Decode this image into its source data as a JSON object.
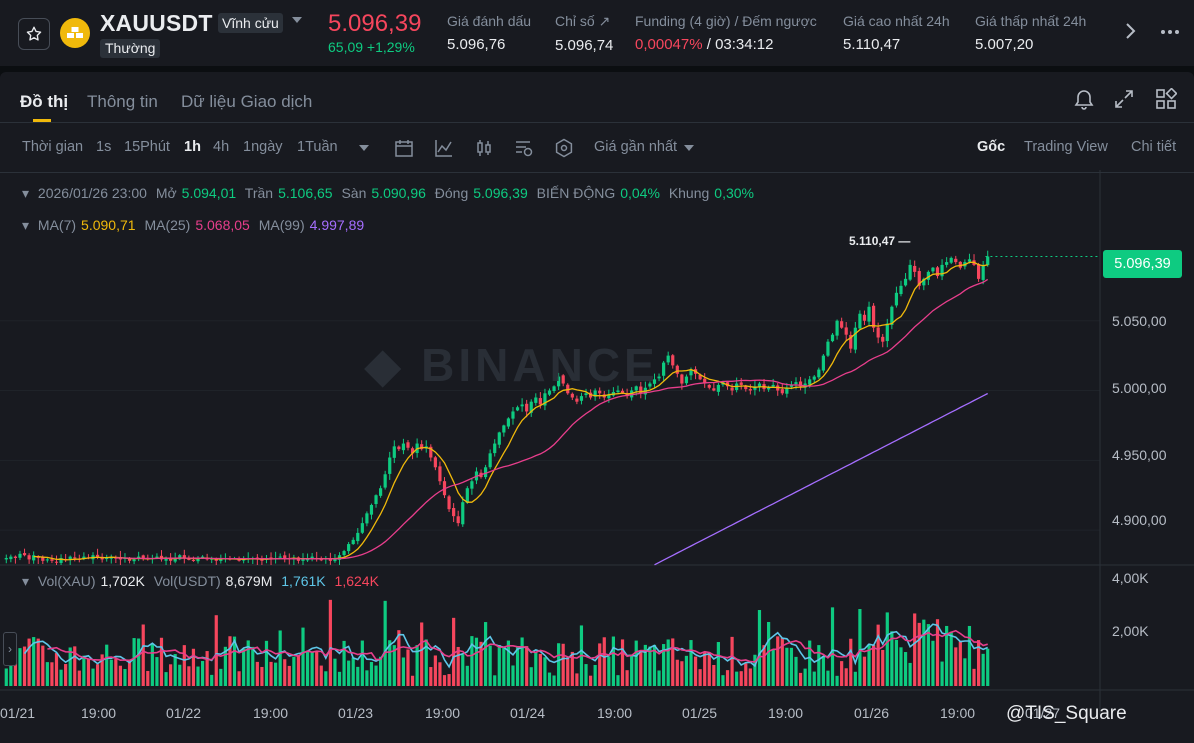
{
  "header": {
    "symbol": "XAUUSDT",
    "contract_type": "Vĩnh cửu",
    "tag": "Thường",
    "last_price": "5.096,39",
    "change": "65,09 +1,29%",
    "stats": [
      {
        "label": "Giá đánh dấu",
        "value": "5.096,76"
      },
      {
        "label": "Chỉ số ↗",
        "value": "5.096,74"
      },
      {
        "label": "Funding (4 giờ) / Đếm ngược",
        "value_funding": "0,00047%",
        "value_countdown": "/ 03:34:12"
      },
      {
        "label": "Giá cao nhất 24h",
        "value": "5.110,47"
      },
      {
        "label": "Giá thấp nhất 24h",
        "value": "5.007,20"
      }
    ]
  },
  "tabs": [
    "Đồ thị",
    "Thông tin",
    "Dữ liệu Giao dịch"
  ],
  "toolbar": {
    "time_label": "Thời gian",
    "intervals": [
      "1s",
      "15Phút",
      "1h",
      "4h",
      "1ngày",
      "1Tuần"
    ],
    "active_interval": "1h",
    "price_type": "Giá gần nhất",
    "views": [
      "Gốc",
      "Trading View",
      "Chi tiết"
    ]
  },
  "ohlc": {
    "date": "2026/01/26 23:00",
    "open_label": "Mở",
    "open": "5.094,01",
    "high_label": "Trần",
    "high": "5.106,65",
    "low_label": "Sàn",
    "low": "5.090,96",
    "close_label": "Đóng",
    "close": "5.096,39",
    "change_label": "BIẾN ĐỘNG",
    "change": "0,04%",
    "range_label": "Khung",
    "range": "0,30%"
  },
  "ma": {
    "ma7_label": "MA(7)",
    "ma7": "5.090,71",
    "ma25_label": "MA(25)",
    "ma25": "5.068,05",
    "ma99_label": "MA(99)",
    "ma99": "4.997,89"
  },
  "volume": {
    "label_xau": "Vol(XAU)",
    "xau": "1,702K",
    "label_usdt": "Vol(USDT)",
    "usdt": "8,679M",
    "ma_a": "1,761K",
    "ma_b": "1,624K"
  },
  "price_axis": [
    "5.050,00",
    "5.000,00",
    "4.950,00",
    "4.900,00"
  ],
  "volume_axis": [
    "4,00K",
    "2,00K"
  ],
  "time_axis": [
    "01/21",
    "19:00",
    "01/22",
    "19:00",
    "01/23",
    "19:00",
    "01/24",
    "19:00",
    "01/25",
    "19:00",
    "01/26",
    "19:00",
    "01/27"
  ],
  "current_price_tag": "5.096,39",
  "high_marker": "5.110,47",
  "watermark": "BINANCE",
  "credit": "@TIS_Square",
  "colors": {
    "up": "#0ecb81",
    "down": "#f6465d",
    "ma7": "#f0b90b",
    "ma25": "#e83e8c",
    "ma99": "#a56eff",
    "accent": "#f0b90b"
  },
  "icons": {
    "star": "star-icon",
    "coin": "gold-bars-icon",
    "bell": "bell-icon",
    "expand": "expand-icon",
    "layout": "grid-layout-icon"
  },
  "chart_data": {
    "type": "candlestick",
    "interval": "1h",
    "ylim": [
      4875,
      5115
    ],
    "closes": [
      4880,
      4881,
      4880,
      4883,
      4882,
      4879,
      4882,
      4880,
      4878,
      4879,
      4878,
      4877,
      4880,
      4879,
      4881,
      4880,
      4879,
      4881,
      4880,
      4882,
      4881,
      4879,
      4880,
      4881,
      4880,
      4879,
      4880,
      4878,
      4879,
      4881,
      4880,
      4879,
      4880,
      4881,
      4879,
      4880,
      4878,
      4880,
      4882,
      4880,
      4879,
      4878,
      4880,
      4881,
      4879,
      4880,
      4878,
      4879,
      4880,
      4879,
      4880,
      4878,
      4879,
      4880,
      4880,
      4879,
      4878,
      4880,
      4879,
      4880,
      4881,
      4880,
      4879,
      4880,
      4878,
      4879,
      4880,
      4881,
      4880,
      4879,
      4880,
      4878,
      4879,
      4882,
      4885,
      4890,
      4893,
      4898,
      4905,
      4912,
      4918,
      4925,
      4930,
      4940,
      4952,
      4960,
      4958,
      4962,
      4959,
      4955,
      4962,
      4958,
      4960,
      4952,
      4945,
      4935,
      4925,
      4915,
      4910,
      4905,
      4920,
      4930,
      4935,
      4942,
      4938,
      4945,
      4955,
      4962,
      4970,
      4975,
      4980,
      4985,
      4988,
      4990,
      4985,
      4992,
      4995,
      4990,
      4998,
      5000,
      5003,
      5010,
      5005,
      4998,
      4995,
      4992,
      4996,
      4998,
      4995,
      5000,
      4998,
      4995,
      4997,
      4999,
      5000,
      4998,
      4996,
      5000,
      5003,
      4998,
      5002,
      5005,
      5008,
      5010,
      5020,
      5025,
      5018,
      5012,
      5005,
      5010,
      5015,
      5012,
      5008,
      5005,
      5002,
      5000,
      5004,
      5006,
      5003,
      5000,
      5005,
      5004,
      5001,
      5000,
      5003,
      5005,
      5001,
      5002,
      5004,
      5000,
      4998,
      5002,
      5004,
      5006,
      5003,
      5005,
      5008,
      5010,
      5015,
      5025,
      5035,
      5040,
      5050,
      5045,
      5040,
      5030,
      5045,
      5055,
      5050,
      5060,
      5045,
      5038,
      5035,
      5048,
      5060,
      5070,
      5075,
      5080,
      5090,
      5085,
      5075,
      5080,
      5085,
      5088,
      5082,
      5090,
      5092,
      5095,
      5092,
      5088,
      5092,
      5094,
      5090,
      5080,
      5090,
      5096
    ],
    "ma_values": {
      "MA(7)": 5090.71,
      "MA(25)": 5068.05,
      "MA(99)": 4997.89
    }
  }
}
